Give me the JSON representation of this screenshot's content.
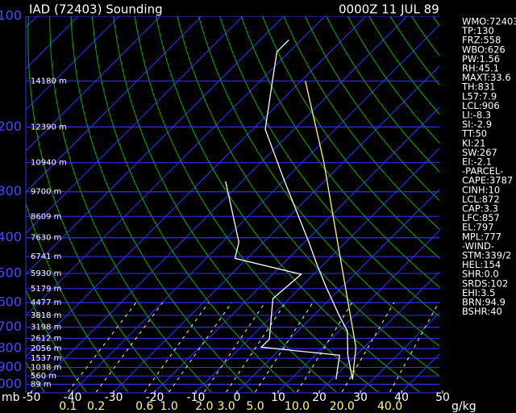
{
  "chart_data": {
    "type": "skewt",
    "title": "IAD (72403) Sounding",
    "date": "0000Z 11 JUL 89",
    "y_label": "mb",
    "ylim": [
      1050,
      100
    ],
    "yticks": [
      100,
      200,
      300,
      400,
      500,
      600,
      700,
      800,
      900,
      1000
    ],
    "xlim": [
      -50,
      50
    ],
    "xticks": [
      -50,
      -40,
      -30,
      -20,
      -10,
      0,
      10,
      20,
      30,
      40,
      50
    ],
    "isotherm_color": "#3030ff",
    "dry_adiabat_color": "#00b000",
    "mixing_ratio": {
      "color": "#ffff70",
      "unit": "g/kg",
      "values": [
        0.1,
        0.2,
        0.6,
        {
          "value": 1,
          "label": "1.0"
        },
        {
          "value": 2,
          "label": "2.0"
        },
        {
          "value": 3,
          "label": "3.0"
        },
        {
          "value": 5,
          "label": "5.0"
        },
        {
          "value": 10,
          "label": "10.0"
        },
        {
          "value": 20,
          "label": "20.0"
        },
        {
          "value": 40,
          "label": "40.0"
        }
      ]
    },
    "heights": {
      "pressures": [
        150,
        200,
        250,
        300,
        350,
        400,
        450,
        500,
        550,
        600,
        650,
        700,
        750,
        800,
        850,
        900,
        950,
        1000
      ],
      "labels": [
        "14180 m",
        "12390 m",
        "10940 m",
        "9700 m",
        "8609 m",
        "7630 m",
        "6741 m",
        "5930 m",
        "5179 m",
        "4477 m",
        "3818 m",
        "3198 m",
        "2612 m",
        "2056 m",
        "1537 m",
        "1038 m",
        "560 m",
        "89 m"
      ]
    },
    "series": [
      {
        "color": "#ffffff",
        "p": [
          116,
          125,
          150,
          203,
          274,
          411,
          478,
          543,
          648,
          717,
          834,
          970
        ],
        "values": [
          -73,
          -73,
          -67,
          -57,
          -41,
          -19,
          -11,
          -4,
          6,
          12,
          18,
          25
        ]
      },
      {
        "color": "#ffffff",
        "p": [
          281,
          411,
          455,
          503,
          585,
          754,
          793,
          834,
          970
        ],
        "values": [
          -54,
          -36,
          -33,
          -13,
          -14,
          -5,
          -5,
          16,
          21
        ]
      },
      {
        "color": "#ffff70",
        "p": [
          150,
          248,
          411,
          793,
          970
        ],
        "values": [
          -59,
          -35,
          -12,
          18,
          25
        ]
      }
    ],
    "indices": [
      "WMO:72403",
      "TP:130",
      "FRZ:558",
      "WBO:626",
      "PW:1.56",
      "RH:45.1",
      "MAXT:33.6",
      "TH:831",
      "L57:7.9",
      "LCL:906",
      "LI:-8.3",
      "SI:-2.9",
      "TT:50",
      "KI:21",
      "SW:267",
      "EI:-2.1",
      "-PARCEL-",
      "CAPE:3787",
      "CINH:10",
      "LCL:872",
      "CAP:3.3",
      "LFC:857",
      "EL:797",
      "MPL:777",
      "-WIND-",
      "STM:339/2",
      "HEL:154",
      "SHR:0.0",
      "SRDS:102",
      "EHI:3.5",
      "BRN:94.9",
      "BSHR:40"
    ]
  }
}
